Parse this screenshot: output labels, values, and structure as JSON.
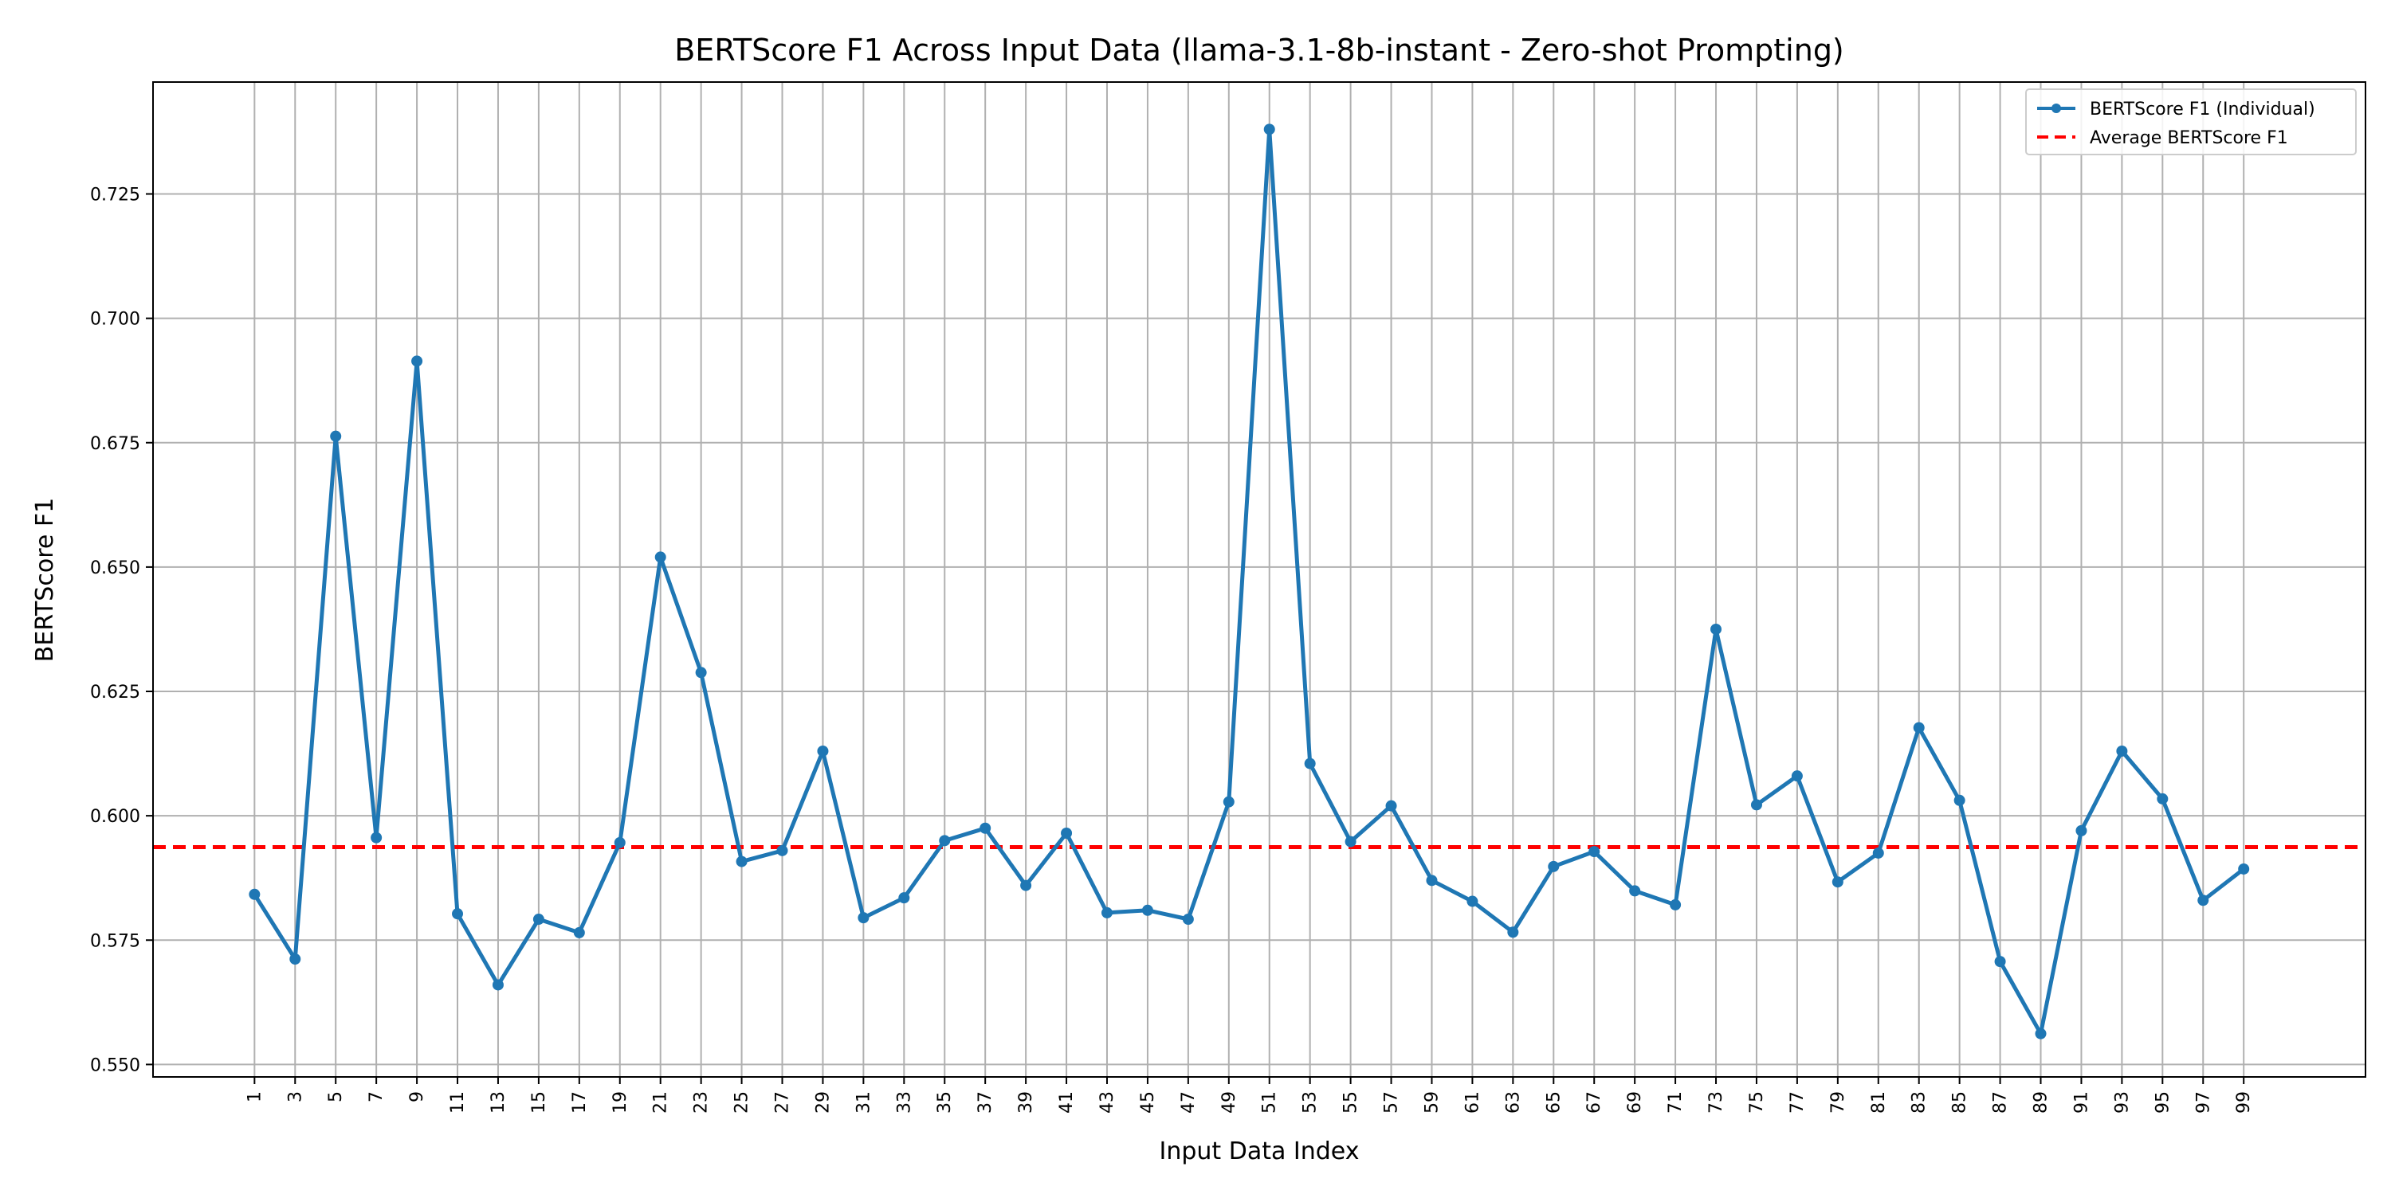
{
  "chart_data": {
    "type": "line",
    "title": "BERTScore F1 Across Input Data (llama-3.1-8b-instant - Zero-shot Prompting)",
    "xlabel": "Input Data Index",
    "ylabel": "BERTScore F1",
    "x": [
      1,
      3,
      5,
      7,
      9,
      11,
      13,
      15,
      17,
      19,
      21,
      23,
      25,
      27,
      29,
      31,
      33,
      35,
      37,
      39,
      41,
      43,
      45,
      47,
      49,
      51,
      53,
      55,
      57,
      59,
      61,
      63,
      65,
      67,
      69,
      71,
      73,
      75,
      77,
      79,
      81,
      83,
      85,
      87,
      89,
      91,
      93,
      95,
      97,
      99
    ],
    "x_tick_labels": [
      "1",
      "3",
      "5",
      "7",
      "9",
      "11",
      "13",
      "15",
      "17",
      "19",
      "21",
      "23",
      "25",
      "27",
      "29",
      "31",
      "33",
      "35",
      "37",
      "39",
      "41",
      "43",
      "45",
      "47",
      "49",
      "51",
      "53",
      "55",
      "57",
      "59",
      "61",
      "63",
      "65",
      "67",
      "69",
      "71",
      "73",
      "75",
      "77",
      "79",
      "81",
      "83",
      "85",
      "87",
      "89",
      "91",
      "93",
      "95",
      "97",
      "99"
    ],
    "xlim": [
      -4,
      105
    ],
    "ylim": [
      0.5475,
      0.7475
    ],
    "y_ticks": [
      0.55,
      0.575,
      0.6,
      0.625,
      0.65,
      0.675,
      0.7,
      0.725
    ],
    "y_tick_labels": [
      "0.550",
      "0.575",
      "0.600",
      "0.625",
      "0.650",
      "0.675",
      "0.700",
      "0.725"
    ],
    "series": [
      {
        "name": "BERTScore F1 (Individual)",
        "color": "#1f77b4",
        "style": "solid-with-markers",
        "values": [
          0.5842,
          0.5712,
          0.6763,
          0.5956,
          0.6914,
          0.5803,
          0.566,
          0.5792,
          0.5765,
          0.5946,
          0.652,
          0.6288,
          0.5908,
          0.593,
          0.613,
          0.5795,
          0.5835,
          0.595,
          0.5975,
          0.586,
          0.5965,
          0.5805,
          0.581,
          0.5792,
          0.6028,
          0.738,
          0.6105,
          0.5948,
          0.602,
          0.587,
          0.5828,
          0.5766,
          0.5898,
          0.5928,
          0.5849,
          0.5821,
          0.6375,
          0.6022,
          0.608,
          0.5867,
          0.5925,
          0.6177,
          0.6031,
          0.5707,
          0.5562,
          0.597,
          0.613,
          0.6034,
          0.583,
          0.5893
        ]
      },
      {
        "name": "Average BERTScore F1",
        "color": "#ff0000",
        "style": "dashed",
        "value": 0.5937
      }
    ],
    "grid": true,
    "legend_position": "top-right"
  }
}
